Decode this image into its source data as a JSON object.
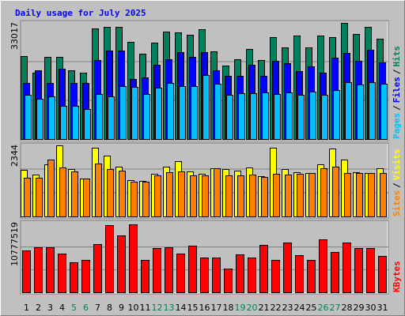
{
  "title": "Daily usage for July 2025",
  "separator": "/",
  "chart_data": [
    {
      "type": "bar",
      "ylim": [
        0,
        33017
      ],
      "yticks": [
        33017
      ],
      "series": [
        {
          "name": "Hits",
          "color": "#00805c",
          "values": [
            23583,
            18866,
            23358,
            23358,
            19540,
            18866,
            31444,
            31893,
            31893,
            27626,
            24257,
            27401,
            30546,
            30321,
            29647,
            31219,
            24931,
            20888,
            22685,
            25604,
            22460,
            28973,
            26054,
            29423,
            26054,
            29423,
            28973,
            33017,
            29872,
            31893,
            28524
          ]
        },
        {
          "name": "Files",
          "color": "#0000ff",
          "values": [
            15947,
            19540,
            15947,
            19989,
            15947,
            15947,
            22460,
            25155,
            25155,
            17070,
            17519,
            21112,
            22685,
            24706,
            23358,
            24706,
            19540,
            17968,
            17968,
            21112,
            17968,
            22235,
            21562,
            19316,
            20663,
            18866,
            23134,
            24481,
            22235,
            25380,
            21786
          ]
        },
        {
          "name": "Pages",
          "color": "#00c0ff",
          "values": [
            12578,
            11455,
            12128,
            9433,
            9433,
            8535,
            12802,
            12128,
            15048,
            14824,
            12802,
            14599,
            15947,
            15048,
            15048,
            18193,
            15722,
            12578,
            13027,
            13027,
            13251,
            12802,
            13251,
            12578,
            13476,
            12578,
            13925,
            16171,
            15497,
            16171,
            15722
          ]
        }
      ]
    },
    {
      "type": "bar",
      "ylim": [
        0,
        2344
      ],
      "yticks": [
        2344
      ],
      "series": [
        {
          "name": "Visits",
          "color": "#ffff00",
          "values": [
            1536,
            1380,
            1719,
            2344,
            1563,
            1250,
            2266,
            2005,
            1641,
            1198,
            1172,
            1406,
            1641,
            1823,
            1484,
            1406,
            1589,
            1563,
            1510,
            1615,
            1328,
            2266,
            1563,
            1458,
            1432,
            1719,
            2240,
            1875,
            1458,
            1432,
            1589
          ]
        },
        {
          "name": "Sites",
          "color": "#ff8000",
          "values": [
            1276,
            1276,
            1875,
            1615,
            1484,
            1250,
            1745,
            1563,
            1510,
            1146,
            1146,
            1354,
            1458,
            1484,
            1354,
            1354,
            1589,
            1354,
            1354,
            1380,
            1302,
            1406,
            1380,
            1406,
            1432,
            1589,
            1641,
            1432,
            1432,
            1432,
            1432
          ]
        }
      ]
    },
    {
      "type": "bar",
      "ylim": [
        0,
        10777519
      ],
      "yticks": [
        10777519
      ],
      "categories": [
        "1",
        "2",
        "3",
        "4",
        "5",
        "6",
        "7",
        "8",
        "9",
        "10",
        "11",
        "12",
        "13",
        "14",
        "15",
        "16",
        "17",
        "18",
        "19",
        "20",
        "21",
        "22",
        "23",
        "24",
        "25",
        "26",
        "27",
        "28",
        "29",
        "30",
        "31"
      ],
      "category_colors": [
        "#000000",
        "#000000",
        "#000000",
        "#000000",
        "#00805c",
        "#00805c",
        "#000000",
        "#000000",
        "#000000",
        "#000000",
        "#000000",
        "#00805c",
        "#00805c",
        "#000000",
        "#000000",
        "#000000",
        "#000000",
        "#000000",
        "#00805c",
        "#00805c",
        "#000000",
        "#000000",
        "#000000",
        "#000000",
        "#000000",
        "#00805c",
        "#00805c",
        "#000000",
        "#000000",
        "#000000",
        "#000000"
      ],
      "series": [
        {
          "name": "KBytes",
          "color": "#ff0000",
          "values": [
            6641960,
            7143240,
            7143240,
            6140680,
            4762160,
            5138120,
            7644520,
            10652200,
            9023040,
            10777519,
            5138120,
            7017920,
            7143240,
            6140680,
            7393880,
            5514080,
            5514080,
            3759600,
            6015360,
            5514080,
            7519200,
            5138120,
            7895160,
            5890040,
            5138120,
            8396440,
            6391320,
            7895160,
            7017920,
            7017920,
            5764720
          ]
        }
      ]
    }
  ]
}
